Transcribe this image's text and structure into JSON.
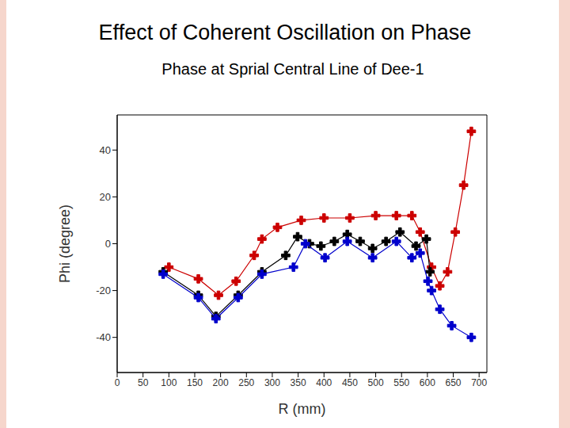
{
  "chart_data": {
    "type": "line",
    "title": "Effect of Coherent Oscillation on Phase",
    "subtitle": "Phase at Sprial Central Line of Dee-1",
    "x_label": "R (mm)",
    "y_label": "Phi (degree)",
    "xlim": [
      0,
      715
    ],
    "xticks": [
      0,
      50,
      100,
      150,
      200,
      250,
      300,
      350,
      400,
      450,
      500,
      550,
      600,
      650,
      700
    ],
    "ylim": [
      -55,
      55
    ],
    "yticks": [
      -40,
      -20,
      0,
      20,
      40
    ],
    "grid": false,
    "series": [
      {
        "color": "#cc0000",
        "marker": "plus",
        "x": [
          100,
          157,
          196,
          230,
          265,
          280,
          310,
          356,
          400,
          450,
          500,
          540,
          570,
          586,
          608,
          624,
          639,
          654,
          670,
          685
        ],
        "values": [
          -10,
          -15,
          -22,
          -16,
          -5,
          2,
          7,
          10,
          11,
          11,
          12,
          12,
          12,
          5,
          -10,
          -18,
          -12,
          5,
          25,
          48
        ]
      },
      {
        "color": "#000000",
        "marker": "plus",
        "x": [
          89,
          157,
          191,
          234,
          280,
          326,
          349,
          372,
          394,
          420,
          445,
          470,
          494,
          520,
          547,
          578,
          598,
          605
        ],
        "values": [
          -12,
          -22,
          -31,
          -22,
          -12,
          -5,
          3,
          0,
          -1,
          1,
          4,
          1,
          -2,
          1,
          5,
          -1,
          2,
          -12
        ]
      },
      {
        "color": "#0000cc",
        "marker": "plus",
        "x": [
          89,
          157,
          191,
          234,
          280,
          341,
          364,
          402,
          445,
          494,
          540,
          570,
          586,
          601,
          608,
          624,
          647,
          685
        ],
        "values": [
          -13,
          -23,
          -32,
          -23,
          -13,
          -10,
          0,
          -6,
          1,
          -6,
          1,
          -6,
          -4,
          -16,
          -20,
          -28,
          -35,
          -40
        ]
      }
    ]
  }
}
